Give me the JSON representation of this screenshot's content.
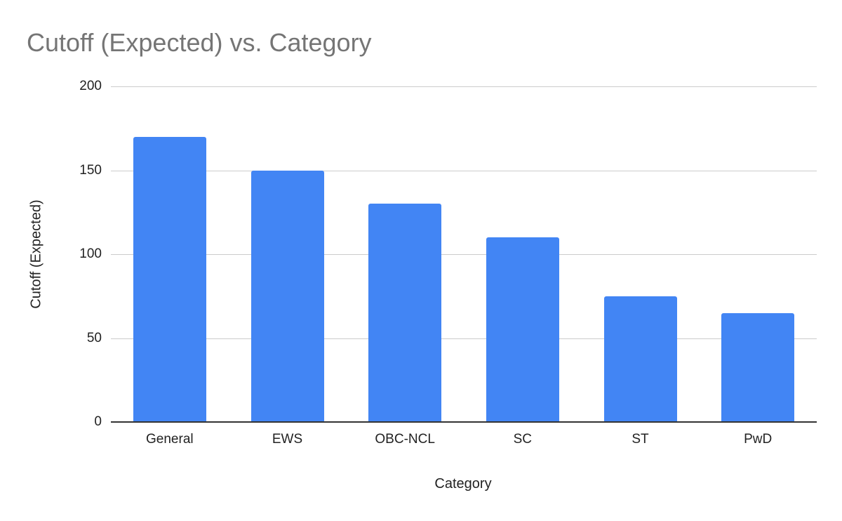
{
  "chart_data": {
    "type": "bar",
    "title": "Cutoff (Expected) vs. Category",
    "xlabel": "Category",
    "ylabel": "Cutoff (Expected)",
    "categories": [
      "General",
      "EWS",
      "OBC-NCL",
      "SC",
      "ST",
      "PwD"
    ],
    "values": [
      170,
      150,
      130,
      110,
      75,
      65
    ],
    "ylim": [
      0,
      200
    ],
    "yticks": [
      "0",
      "50",
      "100",
      "150",
      "200"
    ],
    "grid": true,
    "legend": "none",
    "bar_color": "#4285f4"
  }
}
